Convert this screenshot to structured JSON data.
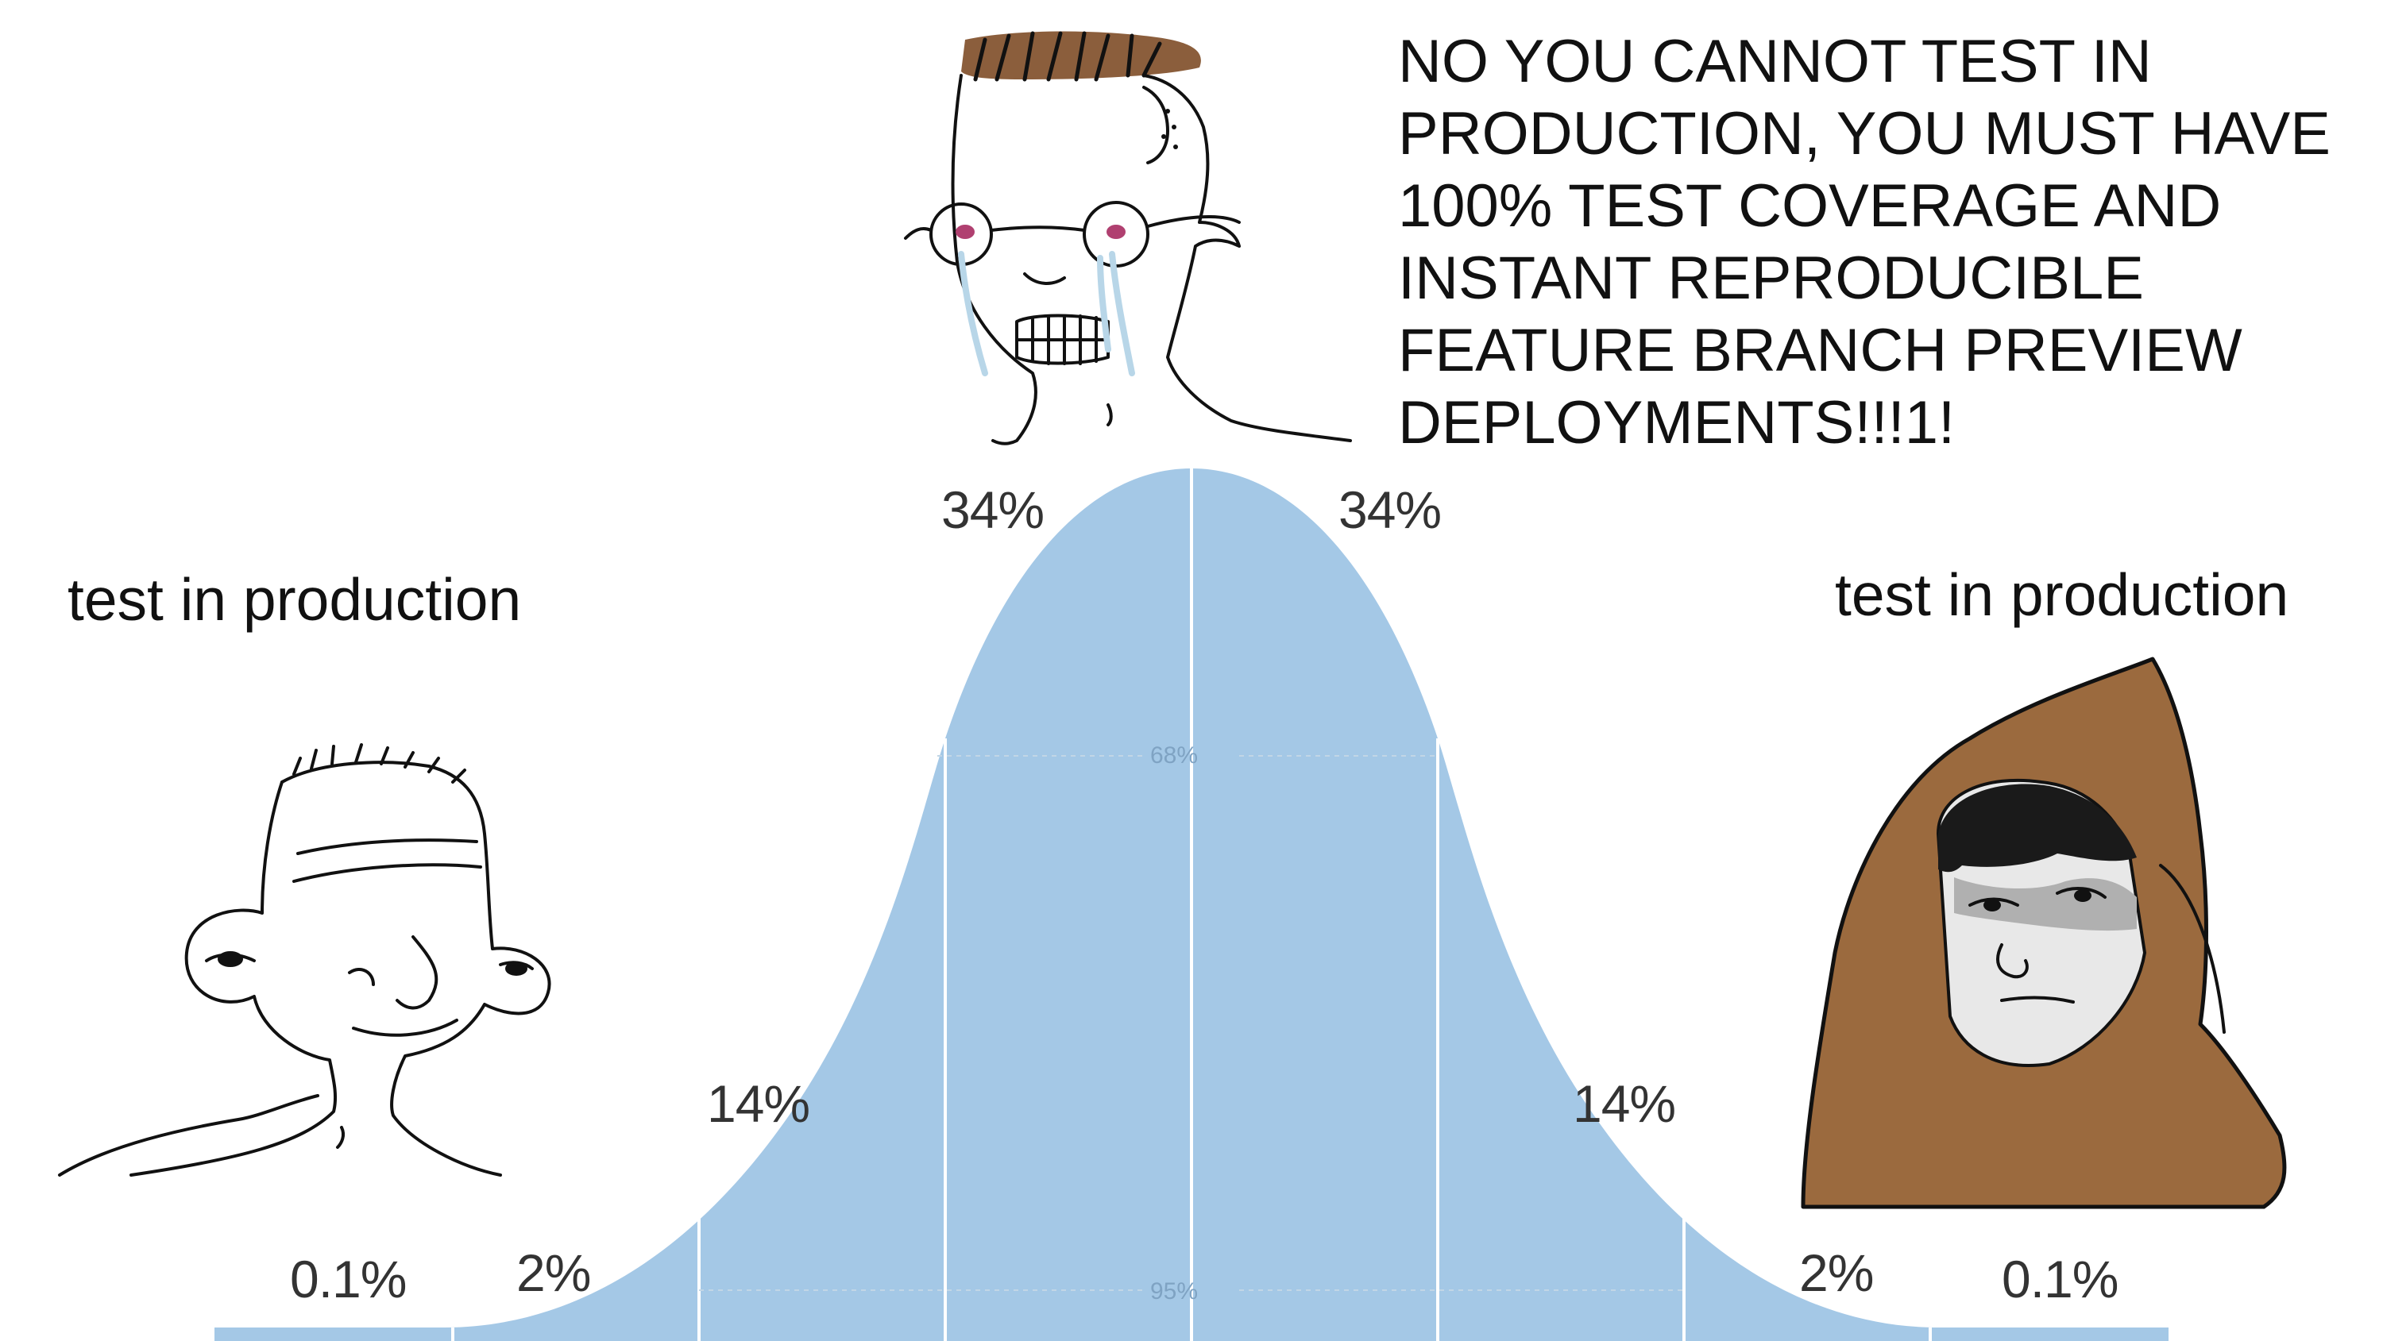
{
  "meme": {
    "top_quote": "NO YOU CANNOT TEST IN\nPRODUCTION, YOU MUST HAVE\n100% TEST COVERAGE AND\nINSTANT REPRODUCIBLE\nFEATURE BRANCH PREVIEW\nDEPLOYMENTS!!!1!",
    "left_caption": "test in production",
    "right_caption": "test in production"
  },
  "distribution": {
    "percent_labels": {
      "far_left": "0.1%",
      "left_tail": "2%",
      "left_mid": "14%",
      "left_center": "34%",
      "right_center": "34%",
      "right_mid": "14%",
      "right_tail": "2%",
      "far_right": "0.1%"
    },
    "inner_labels": {
      "one_sigma": "68%",
      "two_sigma": "95%"
    },
    "curve_color": "#a4c8e6",
    "divider_color": "#ffffff"
  },
  "characters": {
    "left": "simple-wojak",
    "center": "crying-glasses-wojak",
    "right": "hooded-monk-wojak"
  }
}
